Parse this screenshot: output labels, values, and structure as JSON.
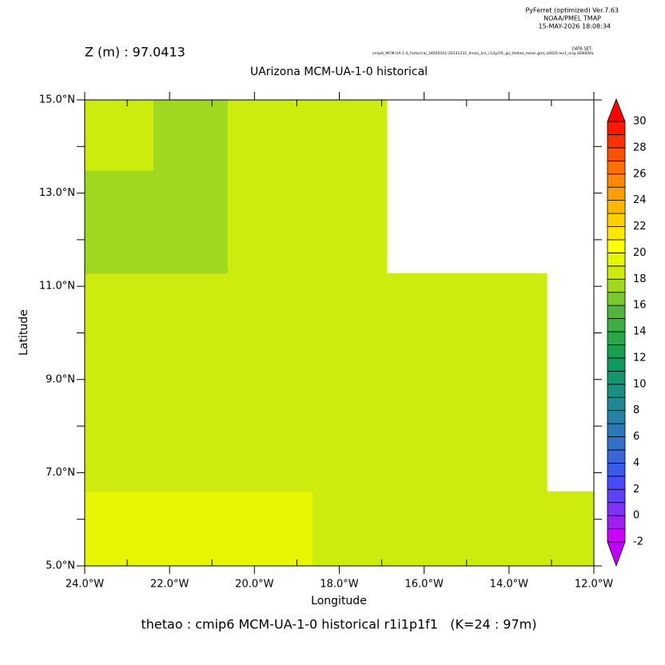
{
  "chart_data": {
    "type": "heatmap",
    "header": [
      "PyFerret (optimized) Ver.7.63",
      "NOAA/PMEL TMAP",
      "15-MAY-2026 18:08:34"
    ],
    "subtitle": "Z (m) : 97.0413",
    "dataset_label": "DATA SET:",
    "dataset": "cmip6_MCM-UA-1-0_historical_18500101-20141231_0mos_1m_r1i1p1f1_gn_thetao_mean.grid_x0025-lev1_orig.GENERAL",
    "title": "UArizona MCM-UA-1-0 historical",
    "x_label": "Longitude",
    "y_label": "Latitude",
    "footer": "thetao : cmip6 MCM-UA-1-0 historical r1i1p1f1   (K=24 : 97m)",
    "x_edges": [
      -24,
      -22.38,
      -20.63,
      -18.63,
      -16.88,
      -13.11,
      -12
    ],
    "y_edges": [
      5,
      6.6,
      11.28,
      13.49,
      15
    ],
    "values": [
      [
        19.5,
        19.5,
        19.5,
        18.5,
        18.5,
        18.5
      ],
      [
        18.5,
        18.5,
        18.5,
        18.5,
        18.5,
        null
      ],
      [
        17.5,
        17.5,
        18.5,
        18.5,
        null,
        null
      ],
      [
        18.5,
        17.5,
        18.5,
        18.5,
        null,
        null
      ]
    ],
    "xlim": [
      -24,
      -12
    ],
    "ylim": [
      5,
      15
    ],
    "xticks": [
      {
        "value": -24,
        "label": "24.0°W"
      },
      {
        "value": -22,
        "label": "22.0°W"
      },
      {
        "value": -20,
        "label": "20.0°W"
      },
      {
        "value": -18,
        "label": "18.0°W"
      },
      {
        "value": -16,
        "label": "16.0°W"
      },
      {
        "value": -14,
        "label": "14.0°W"
      },
      {
        "value": -12,
        "label": "12.0°W"
      }
    ],
    "xminorticks": [
      -23,
      -21,
      -19,
      -17,
      -15,
      -13
    ],
    "yticks": [
      {
        "value": 5,
        "label": "5.0°N"
      },
      {
        "value": 7,
        "label": "7.0°N"
      },
      {
        "value": 9,
        "label": "9.0°N"
      },
      {
        "value": 11,
        "label": "11.0°N"
      },
      {
        "value": 13,
        "label": "13.0°N"
      },
      {
        "value": 15,
        "label": "15.0°N"
      }
    ],
    "yminorticks": [
      6,
      8,
      10,
      12,
      14
    ],
    "clim": [
      -2,
      30
    ],
    "cticks": [
      -2,
      0,
      2,
      4,
      6,
      8,
      10,
      12,
      14,
      16,
      18,
      20,
      22,
      24,
      26,
      28,
      30
    ],
    "colors": [
      "#cc00ff",
      "#a020f0",
      "#8030ff",
      "#6040ff",
      "#4a4aff",
      "#3c5ae8",
      "#3a66d8",
      "#3070c8",
      "#2a78b8",
      "#2880a8",
      "#208890",
      "#1a8e80",
      "#159470",
      "#109a60",
      "#18a050",
      "#28a848",
      "#3cae44",
      "#50b440",
      "#78c830",
      "#a0d820",
      "#cdeb0d",
      "#e6f500",
      "#ffff00",
      "#ffe800",
      "#ffd000",
      "#ffb800",
      "#ffa000",
      "#ff8800",
      "#ff7000",
      "#ff5000",
      "#ff3000",
      "#ff1800"
    ],
    "over_color": "#ff0000",
    "under_color": "#c000ff"
  }
}
